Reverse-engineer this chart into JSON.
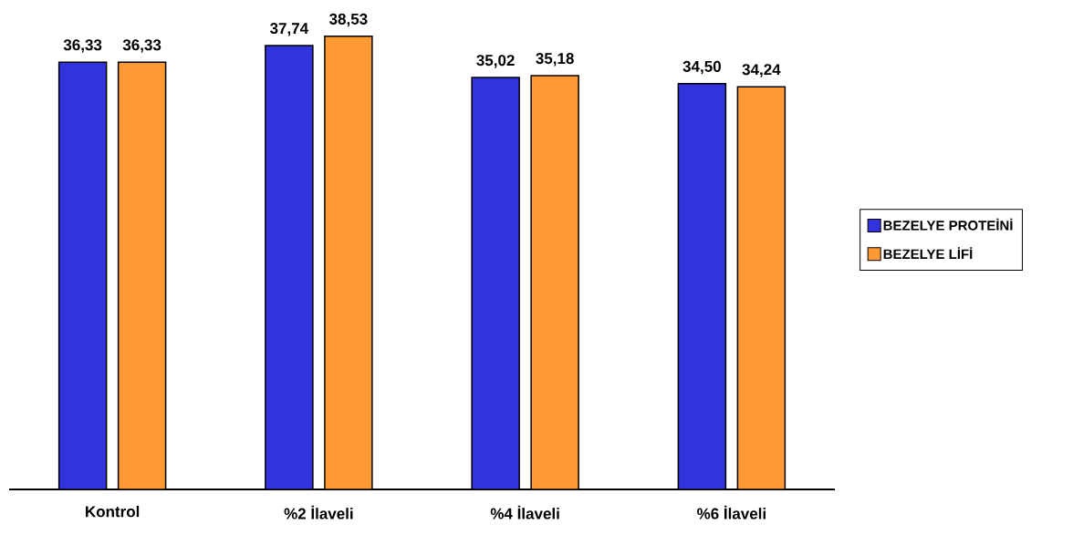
{
  "chart_data": {
    "type": "bar",
    "categories": [
      "Kontrol",
      "%2 İlaveli",
      "%4 İlaveli",
      "%6 İlaveli"
    ],
    "series": [
      {
        "name": "BEZELYE PROTEİNİ",
        "color": "#3333dd",
        "values": [
          36.33,
          37.74,
          35.02,
          34.5
        ],
        "value_labels": [
          "36,33",
          "37,74",
          "35,02",
          "34,50"
        ]
      },
      {
        "name": "BEZELYE LİFİ",
        "color": "#ff9933",
        "values": [
          36.33,
          38.53,
          35.18,
          34.24
        ],
        "value_labels": [
          "36,33",
          "38,53",
          "35,18",
          "34,24"
        ]
      }
    ],
    "legend": "right"
  }
}
